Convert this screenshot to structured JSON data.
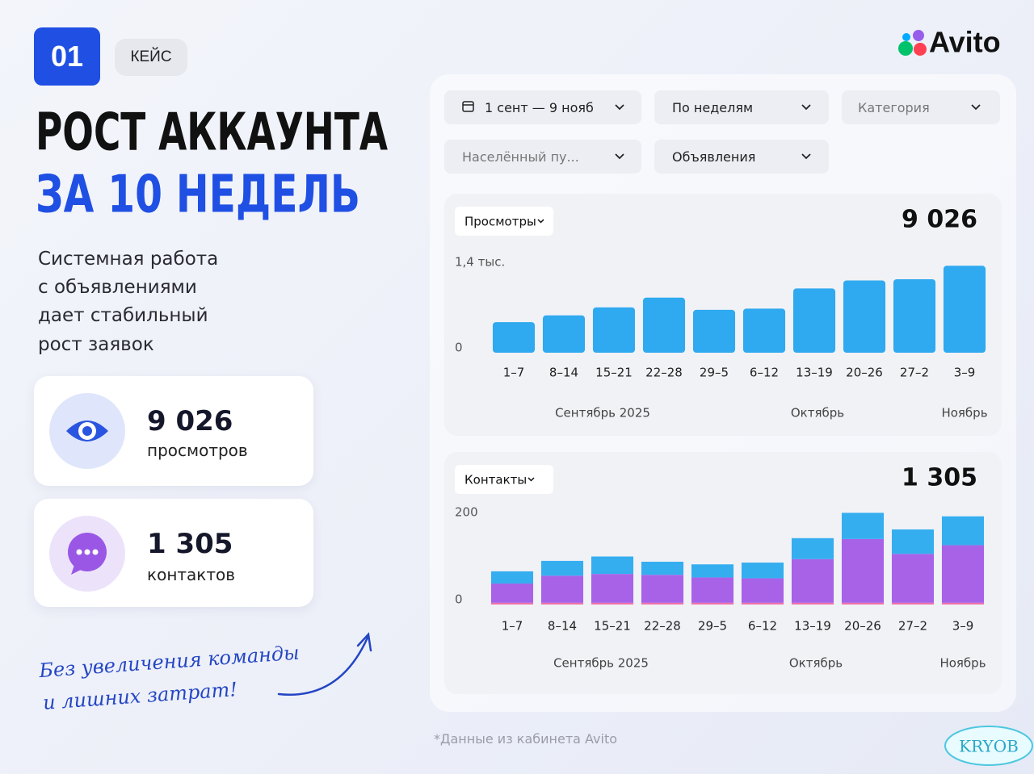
{
  "badge": "01",
  "tag": "КЕЙС",
  "logo": "Avito",
  "title": {
    "line1": "РОСТ АККАУНТА",
    "line2": "ЗА 10 НЕДЕЛЬ"
  },
  "description": [
    "Системная работа",
    "с объявлениями",
    "дает стабильный",
    "рост заявок"
  ],
  "stats": [
    {
      "value": "9 026",
      "label": "просмотров"
    },
    {
      "value": "1 305",
      "label": "контактов"
    }
  ],
  "note": [
    "Без увеличения команды",
    "и лишних затрат!"
  ],
  "filters": [
    "1 сент — 9 нояб",
    "По неделям",
    "Категория",
    "Населённый пу...",
    "Объявления"
  ],
  "footnote": "*Данные из кабинета Avito",
  "watermark": "KRYOB",
  "chart_data": [
    {
      "type": "bar",
      "metric": "Просмотры",
      "total": "9 026",
      "categories": [
        "1–7",
        "8–14",
        "15–21",
        "22–28",
        "29–5",
        "6–12",
        "13–19",
        "20–26",
        "27–2",
        "3–9"
      ],
      "values": [
        500,
        610,
        740,
        900,
        700,
        720,
        1050,
        1180,
        1200,
        1420
      ],
      "color": "#2fa9ef",
      "ylim": [
        0,
        1450
      ],
      "yticks": [
        0,
        {
          "value": 1400,
          "label": "1,4 тыс."
        }
      ],
      "x_groups": [
        "Сентябрь 2025",
        "Октябрь",
        "Ноябрь"
      ]
    },
    {
      "type": "stacked_bar",
      "metric": "Контакты",
      "total": "1 305",
      "categories": [
        "1–7",
        "8–14",
        "15–21",
        "22–28",
        "29–5",
        "6–12",
        "13–19",
        "20–26",
        "27–2",
        "3–9"
      ],
      "series": [
        {
          "color": "#ef70a9",
          "values": [
            4,
            4,
            4,
            4,
            4,
            4,
            4,
            4,
            4,
            4
          ]
        },
        {
          "color": "#a862e8",
          "values": [
            44,
            62,
            66,
            64,
            58,
            56,
            100,
            146,
            112,
            132
          ]
        },
        {
          "color": "#35aef0",
          "values": [
            28,
            34,
            40,
            30,
            30,
            36,
            48,
            60,
            56,
            66
          ]
        }
      ],
      "ylim": [
        0,
        220
      ],
      "yticks": [
        0,
        200
      ],
      "x_groups": [
        "Сентябрь 2025",
        "Октябрь",
        "Ноябрь"
      ]
    }
  ]
}
